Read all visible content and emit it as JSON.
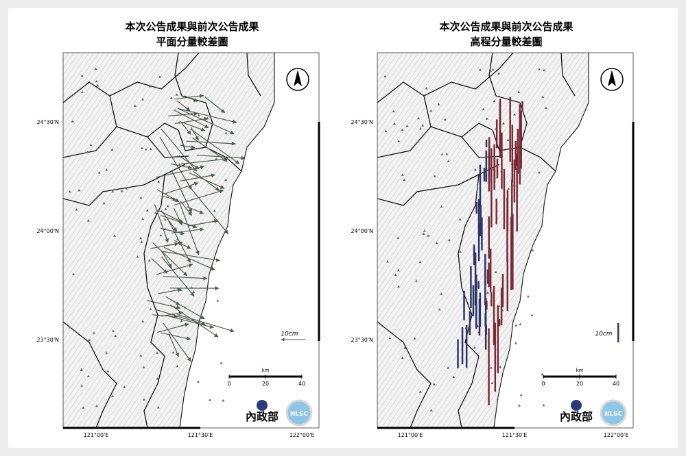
{
  "panels": [
    {
      "title": [
        "本次公告成果與前次公告成果",
        "平面分量較差圖"
      ],
      "lat_labels": [
        "24°30'N",
        "24°00'N",
        "23°30'N"
      ],
      "lon_labels": [
        "121°00'E",
        "121°30'E",
        "122°00'E"
      ],
      "scale": {
        "unit": "km",
        "ticks": [
          0,
          20,
          40
        ]
      },
      "legend": "10cm",
      "logo": {
        "ministry": "內政部",
        "badge": "NLSC"
      }
    },
    {
      "title": [
        "本次公告成果與前次公告成果",
        "高程分量較差圖"
      ],
      "lat_labels": [
        "24°30'N",
        "24°00'N",
        "23°30'N"
      ],
      "lon_labels": [
        "121°00'E",
        "121°30'E",
        "122°00'E"
      ],
      "scale": {
        "unit": "km",
        "ticks": [
          0,
          20,
          40
        ]
      },
      "legend": "10cm",
      "logo": {
        "ministry": "內政部",
        "badge": "NLSC"
      }
    }
  ]
}
